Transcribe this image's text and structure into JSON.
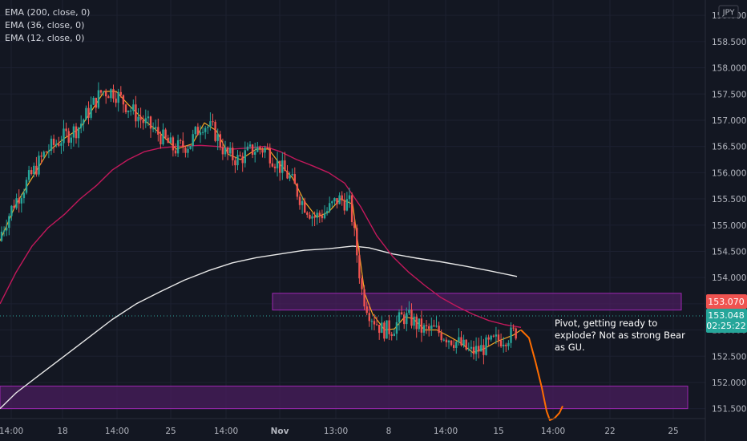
{
  "legend": {
    "ema200": "EMA (200, close, 0)",
    "ema36": "EMA (36, close, 0)",
    "ema12": "EMA (12, close, 0)"
  },
  "currency": "JPY",
  "note": "Pivot, getting ready to explode? Not as strong Bear as GU.",
  "price_tags": {
    "last_close": "153.070",
    "current": "153.048",
    "countdown": "02:25:22"
  },
  "colors": {
    "background": "#131722",
    "up_candle": "#26a69a",
    "down_candle": "#ef5350",
    "ema200": "#e8e8e8",
    "ema36": "#c2185b",
    "ema12": "#f5a623",
    "projection": "#ff6d00",
    "zone_fill": "#4a1d5e",
    "zone_border": "#9c27b0"
  },
  "chart_data": {
    "type": "candlestick",
    "y_axis": {
      "range": [
        151.25,
        159.1
      ],
      "ticks": [
        "159.000",
        "158.500",
        "158.000",
        "157.500",
        "157.000",
        "156.500",
        "156.000",
        "155.500",
        "155.000",
        "154.500",
        "154.000",
        "153.500",
        "153.000",
        "152.500",
        "152.000",
        "151.500"
      ]
    },
    "x_axis": {
      "ticks": [
        "14:00",
        "18",
        "14:00",
        "25",
        "14:00",
        "Nov",
        "13:00",
        "8",
        "14:00",
        "15",
        "14:00",
        "22",
        "25"
      ]
    },
    "zones": [
      {
        "from": 153.38,
        "to": 153.7
      },
      {
        "from": 151.5,
        "to": 151.93
      }
    ],
    "ema200_path": [
      [
        0,
        151.5
      ],
      [
        20,
        151.8
      ],
      [
        50,
        152.15
      ],
      [
        80,
        152.5
      ],
      [
        110,
        152.85
      ],
      [
        140,
        153.2
      ],
      [
        170,
        153.5
      ],
      [
        200,
        153.73
      ],
      [
        230,
        153.95
      ],
      [
        260,
        154.13
      ],
      [
        290,
        154.28
      ],
      [
        320,
        154.38
      ],
      [
        350,
        154.45
      ],
      [
        380,
        154.52
      ],
      [
        410,
        154.55
      ],
      [
        440,
        154.6
      ],
      [
        460,
        154.57
      ],
      [
        490,
        154.45
      ],
      [
        520,
        154.37
      ],
      [
        550,
        154.3
      ],
      [
        580,
        154.22
      ],
      [
        610,
        154.13
      ],
      [
        645,
        154.02
      ]
    ],
    "ema36_path": [
      [
        0,
        153.5
      ],
      [
        20,
        154.1
      ],
      [
        40,
        154.6
      ],
      [
        60,
        154.95
      ],
      [
        80,
        155.2
      ],
      [
        100,
        155.5
      ],
      [
        120,
        155.75
      ],
      [
        140,
        156.05
      ],
      [
        160,
        156.25
      ],
      [
        180,
        156.4
      ],
      [
        200,
        156.47
      ],
      [
        220,
        156.5
      ],
      [
        250,
        156.52
      ],
      [
        270,
        156.5
      ],
      [
        290,
        156.45
      ],
      [
        310,
        156.47
      ],
      [
        330,
        156.5
      ],
      [
        350,
        156.4
      ],
      [
        370,
        156.25
      ],
      [
        390,
        156.13
      ],
      [
        410,
        156.0
      ],
      [
        430,
        155.8
      ],
      [
        450,
        155.35
      ],
      [
        470,
        154.8
      ],
      [
        490,
        154.4
      ],
      [
        510,
        154.1
      ],
      [
        530,
        153.85
      ],
      [
        550,
        153.62
      ],
      [
        570,
        153.45
      ],
      [
        590,
        153.3
      ],
      [
        610,
        153.18
      ],
      [
        630,
        153.1
      ],
      [
        650,
        153.05
      ]
    ],
    "ema12_path": [
      [
        0,
        154.7
      ],
      [
        20,
        155.4
      ],
      [
        40,
        155.9
      ],
      [
        60,
        156.4
      ],
      [
        80,
        156.65
      ],
      [
        100,
        156.85
      ],
      [
        115,
        157.2
      ],
      [
        130,
        157.55
      ],
      [
        145,
        157.55
      ],
      [
        160,
        157.3
      ],
      [
        180,
        157.0
      ],
      [
        200,
        156.75
      ],
      [
        220,
        156.45
      ],
      [
        240,
        156.55
      ],
      [
        255,
        156.95
      ],
      [
        270,
        156.8
      ],
      [
        285,
        156.35
      ],
      [
        300,
        156.25
      ],
      [
        320,
        156.45
      ],
      [
        335,
        156.45
      ],
      [
        350,
        156.15
      ],
      [
        365,
        155.9
      ],
      [
        380,
        155.45
      ],
      [
        395,
        155.15
      ],
      [
        410,
        155.25
      ],
      [
        425,
        155.5
      ],
      [
        440,
        155.4
      ],
      [
        448,
        154.5
      ],
      [
        455,
        153.7
      ],
      [
        465,
        153.3
      ],
      [
        480,
        153.0
      ],
      [
        492,
        153.02
      ],
      [
        505,
        153.25
      ],
      [
        515,
        153.22
      ],
      [
        530,
        153.0
      ],
      [
        545,
        153.0
      ],
      [
        560,
        152.88
      ],
      [
        575,
        152.75
      ],
      [
        590,
        152.57
      ],
      [
        605,
        152.65
      ],
      [
        620,
        152.78
      ],
      [
        640,
        152.9
      ],
      [
        650,
        153.0
      ]
    ],
    "projection_path": [
      [
        650,
        153.0
      ],
      [
        660,
        152.85
      ],
      [
        668,
        152.4
      ],
      [
        676,
        151.9
      ],
      [
        682,
        151.45
      ],
      [
        686,
        151.28
      ],
      [
        692,
        151.32
      ],
      [
        698,
        151.42
      ],
      [
        702,
        151.55
      ]
    ]
  }
}
